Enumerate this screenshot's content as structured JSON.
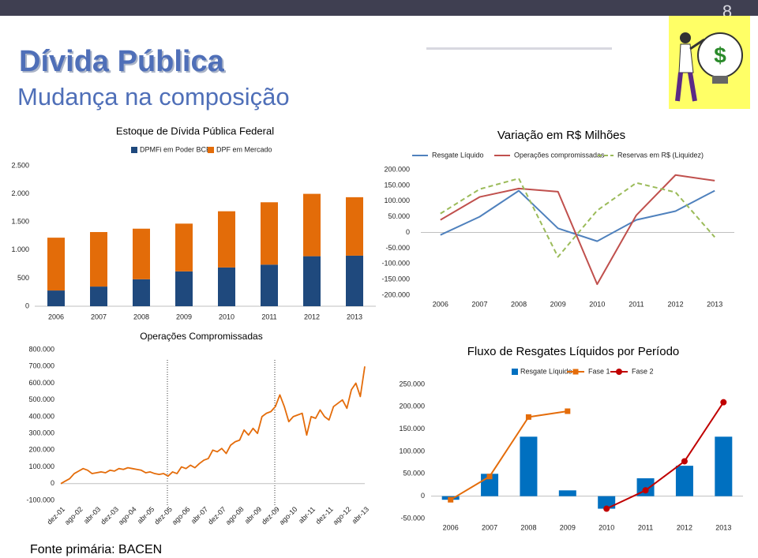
{
  "slide": {
    "page_number": "8",
    "title": "Dívida Pública",
    "subtitle": "Mudança na composição",
    "source": "Fonte primária: BACEN"
  },
  "chart_data": [
    {
      "type": "bar",
      "stacked": true,
      "title": "Estoque de Dívida Pública Federal",
      "categories": [
        "2006",
        "2007",
        "2008",
        "2009",
        "2010",
        "2011",
        "2012",
        "2013"
      ],
      "series": [
        {
          "name": "DPMFi em Poder BCB",
          "color": "#1f497d",
          "values": [
            280,
            350,
            480,
            620,
            690,
            740,
            890,
            900
          ]
        },
        {
          "name": "DPF em Mercado",
          "color": "#e36c09",
          "values": [
            940,
            970,
            900,
            850,
            1000,
            1110,
            1110,
            1040
          ]
        }
      ],
      "ylim": [
        0,
        2500
      ],
      "yticks": [
        0,
        500,
        {
          "value": 1000,
          "label": "1.000"
        },
        {
          "value": 1500,
          "label": "1.500"
        },
        {
          "value": 2000,
          "label": "2.000"
        },
        {
          "value": 2500,
          "label": "2.500"
        }
      ],
      "legend": "top"
    },
    {
      "type": "line",
      "title": "Variação em R$ Milhões",
      "categories": [
        "2006",
        "2007",
        "2008",
        "2009",
        "2010",
        "2011",
        "2012",
        "2013"
      ],
      "series": [
        {
          "name": "Resgate Líquido",
          "color": "#4f81bd",
          "values": [
            -8000,
            50000,
            133000,
            13000,
            -28000,
            40000,
            68000,
            133000
          ]
        },
        {
          "name": "Operações compromissadas",
          "color": "#c0504d",
          "values": [
            40000,
            113000,
            140000,
            130000,
            -165000,
            55000,
            183000,
            165000
          ]
        },
        {
          "name": "Reservas em R$ (Liquidez)",
          "color": "#9bbb59",
          "dash": true,
          "values": [
            60000,
            138000,
            172000,
            -78000,
            70000,
            158000,
            128000,
            -15000
          ]
        }
      ],
      "ylim": [
        -200000,
        200000
      ],
      "yticks": [
        {
          "value": -200000,
          "label": "-200.000"
        },
        {
          "value": -150000,
          "label": "-150.000"
        },
        {
          "value": -100000,
          "label": "-100.000"
        },
        {
          "value": -50000,
          "label": "-50.000"
        },
        0,
        {
          "value": 50000,
          "label": "50.000"
        },
        {
          "value": 100000,
          "label": "100.000"
        },
        {
          "value": 150000,
          "label": "150.000"
        },
        {
          "value": 200000,
          "label": "200.000"
        }
      ],
      "legend": "top"
    },
    {
      "type": "line",
      "title": "Operações Compromissadas",
      "categories": [
        "dez-01",
        null,
        null,
        null,
        "ago-02",
        null,
        null,
        null,
        "abr-03",
        null,
        null,
        null,
        "dez-03",
        null,
        null,
        null,
        "ago-04",
        null,
        null,
        null,
        "abr-05",
        null,
        null,
        null,
        "dez-05",
        null,
        null,
        null,
        "ago-06",
        null,
        null,
        null,
        "abr-07",
        null,
        null,
        null,
        "dez-07",
        null,
        null,
        null,
        "ago-08",
        null,
        null,
        null,
        "abr-09",
        null,
        null,
        null,
        "dez-09",
        null,
        null,
        null,
        "ago-10",
        null,
        null,
        null,
        "abr-11",
        null,
        null,
        null,
        "dez-11",
        null,
        null,
        null,
        "ago-12",
        null,
        null,
        null,
        "abr-13"
      ],
      "series": [
        {
          "color": "#e46c0a",
          "values": [
            0,
            15000,
            30000,
            60000,
            75000,
            90000,
            80000,
            60000,
            65000,
            70000,
            65000,
            80000,
            75000,
            90000,
            85000,
            95000,
            90000,
            85000,
            80000,
            65000,
            70000,
            60000,
            55000,
            60000,
            45000,
            70000,
            60000,
            100000,
            90000,
            110000,
            95000,
            120000,
            140000,
            150000,
            200000,
            190000,
            210000,
            180000,
            230000,
            250000,
            260000,
            320000,
            290000,
            330000,
            300000,
            400000,
            420000,
            430000,
            460000,
            530000,
            460000,
            370000,
            400000,
            410000,
            420000,
            290000,
            400000,
            390000,
            440000,
            400000,
            380000,
            460000,
            480000,
            500000,
            450000,
            560000,
            600000,
            520000,
            700000
          ]
        }
      ],
      "ylim": [
        -100000,
        800000
      ],
      "yticks": [
        {
          "value": -100000,
          "label": "-100.000"
        },
        0,
        {
          "value": 100000,
          "label": "100.000"
        },
        {
          "value": 200000,
          "label": "200.000"
        },
        {
          "value": 300000,
          "label": "300.000"
        },
        {
          "value": 400000,
          "label": "400.000"
        },
        {
          "value": 500000,
          "label": "500.000"
        },
        {
          "value": 600000,
          "label": "600.000"
        },
        {
          "value": 700000,
          "label": "700.000"
        },
        {
          "value": 800000,
          "label": "800.000"
        }
      ],
      "rotated_labels": true
    },
    {
      "type": "combo",
      "title": "Fluxo de Resgates Líquidos por Período",
      "categories": [
        "2006",
        "2007",
        "2008",
        "2009",
        "2010",
        "2011",
        "2012",
        "2013"
      ],
      "series": [
        {
          "name": "Resgate Líquido",
          "type": "bar",
          "color": "#0070c0",
          "values": [
            -8000,
            50000,
            133000,
            13000,
            -28000,
            40000,
            68000,
            133000
          ]
        },
        {
          "name": "Fase 1",
          "type": "line",
          "marker": "square",
          "color": "#e46c0a",
          "values": [
            -8000,
            44000,
            177000,
            190000,
            null,
            null,
            null,
            null
          ]
        },
        {
          "name": "Fase 2",
          "type": "line",
          "marker": "circle",
          "color": "#c00000",
          "values": [
            null,
            null,
            null,
            null,
            -28000,
            13000,
            78000,
            210000
          ]
        }
      ],
      "ylim": [
        -50000,
        250000
      ],
      "yticks": [
        {
          "value": -50000,
          "label": "-50.000"
        },
        0,
        {
          "value": 50000,
          "label": "50.000"
        },
        {
          "value": 100000,
          "label": "100.000"
        },
        {
          "value": 150000,
          "label": "150.000"
        },
        {
          "value": 200000,
          "label": "200.000"
        },
        {
          "value": 250000,
          "label": "250.000"
        }
      ],
      "legend": "top"
    }
  ]
}
